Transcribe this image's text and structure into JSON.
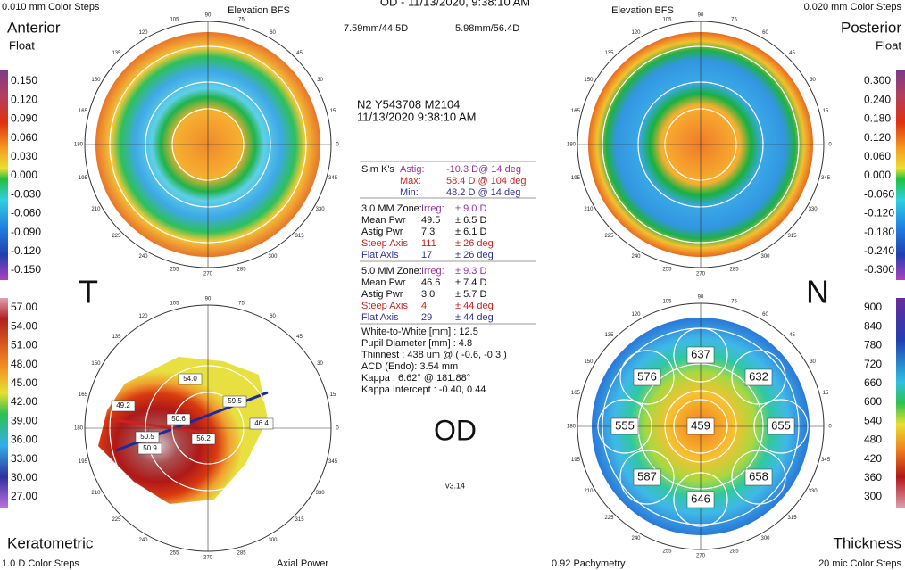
{
  "header": {
    "title": "OD - 11/13/2020, 9:38:10 AM"
  },
  "anterior": {
    "steps": "0.010 mm Color Steps",
    "title": "Anterior",
    "subtitle": "Float",
    "map_type": "Elevation BFS",
    "scale": [
      "0.150",
      "0.120",
      "0.090",
      "0.060",
      "0.030",
      "0.000",
      "-0.030",
      "-0.060",
      "-0.090",
      "-0.120",
      "-0.150"
    ]
  },
  "posterior": {
    "steps": "0.020 mm Color Steps",
    "title": "Posterior",
    "subtitle": "Float",
    "map_type": "Elevation BFS",
    "scale": [
      "0.300",
      "0.240",
      "0.180",
      "0.120",
      "0.060",
      "0.000",
      "-0.060",
      "-0.120",
      "-0.180",
      "-0.240",
      "-0.300"
    ]
  },
  "keratometric": {
    "title": "Keratometric",
    "steps": "1.0 D Color Steps",
    "map_type": "Axial Power",
    "scale": [
      "57.00",
      "54.00",
      "51.00",
      "48.00",
      "45.00",
      "42.00",
      "39.00",
      "36.00",
      "33.00",
      "30.00",
      "27.00"
    ],
    "labels": [
      "54.0",
      "59.5",
      "49.2",
      "50.6",
      "50.5",
      "56.2",
      "46.4",
      "50.9"
    ]
  },
  "thickness": {
    "title": "Thickness",
    "steps": "20 mic Color Steps",
    "map_type": "0.92 Pachymetry",
    "scale": [
      900,
      840,
      780,
      720,
      660,
      600,
      540,
      480,
      420,
      360,
      300
    ],
    "labels": [
      637,
      576,
      632,
      555,
      459,
      655,
      587,
      658,
      646
    ]
  },
  "bfs": [
    "7.59mm/44.5D",
    "5.98mm/56.4D"
  ],
  "polar_angles": [
    0,
    15,
    30,
    45,
    60,
    75,
    90,
    105,
    120,
    135,
    150,
    165,
    180,
    195,
    210,
    225,
    240,
    255,
    270,
    285,
    300,
    315,
    330,
    345
  ],
  "patient": {
    "id": "N2 Y543708 M2104",
    "datetime": "11/13/2020 9:38:10 AM"
  },
  "sim_k": {
    "label": "Sim K's",
    "rows": [
      [
        "Astig:",
        "-10.3 D@ 14 deg"
      ],
      [
        "Max:",
        "58.4 D @ 104 deg"
      ],
      [
        "Min:",
        "48.2 D @ 14 deg"
      ]
    ]
  },
  "zone3": {
    "rows": [
      [
        "3.0 MM Zone:",
        "Irreg:",
        "± 9.0 D"
      ],
      [
        "Mean Pwr",
        "49.5",
        "± 6.5 D"
      ],
      [
        "Astig Pwr",
        "7.3",
        "± 6.1 D"
      ],
      [
        "Steep Axis",
        "111",
        "± 26 deg"
      ],
      [
        "Flat Axis",
        "17",
        "± 26 deg"
      ]
    ]
  },
  "zone5": {
    "rows": [
      [
        "5.0 MM Zone:",
        "Irreg:",
        "± 9.3 D"
      ],
      [
        "Mean Pwr",
        "46.6",
        "± 7.4 D"
      ],
      [
        "Astig Pwr",
        "3.0",
        "± 5.7 D"
      ],
      [
        "Steep Axis",
        "4",
        "± 44 deg"
      ],
      [
        "Flat Axis",
        "29",
        "± 44 deg"
      ]
    ]
  },
  "info": [
    "White-to-White [mm] : 12.5",
    "Pupil Diameter [mm] : 4.8",
    "Thinnest : 438 um @ ( -0.6, -0.3 )",
    "ACD (Endo): 3.54 mm",
    "Kappa : 6.62° @ 181.88°",
    "Kappa Intercept : -0.40, 0.44"
  ],
  "eye": "OD",
  "version": "v3.14",
  "side_left": "T",
  "side_right": "N"
}
